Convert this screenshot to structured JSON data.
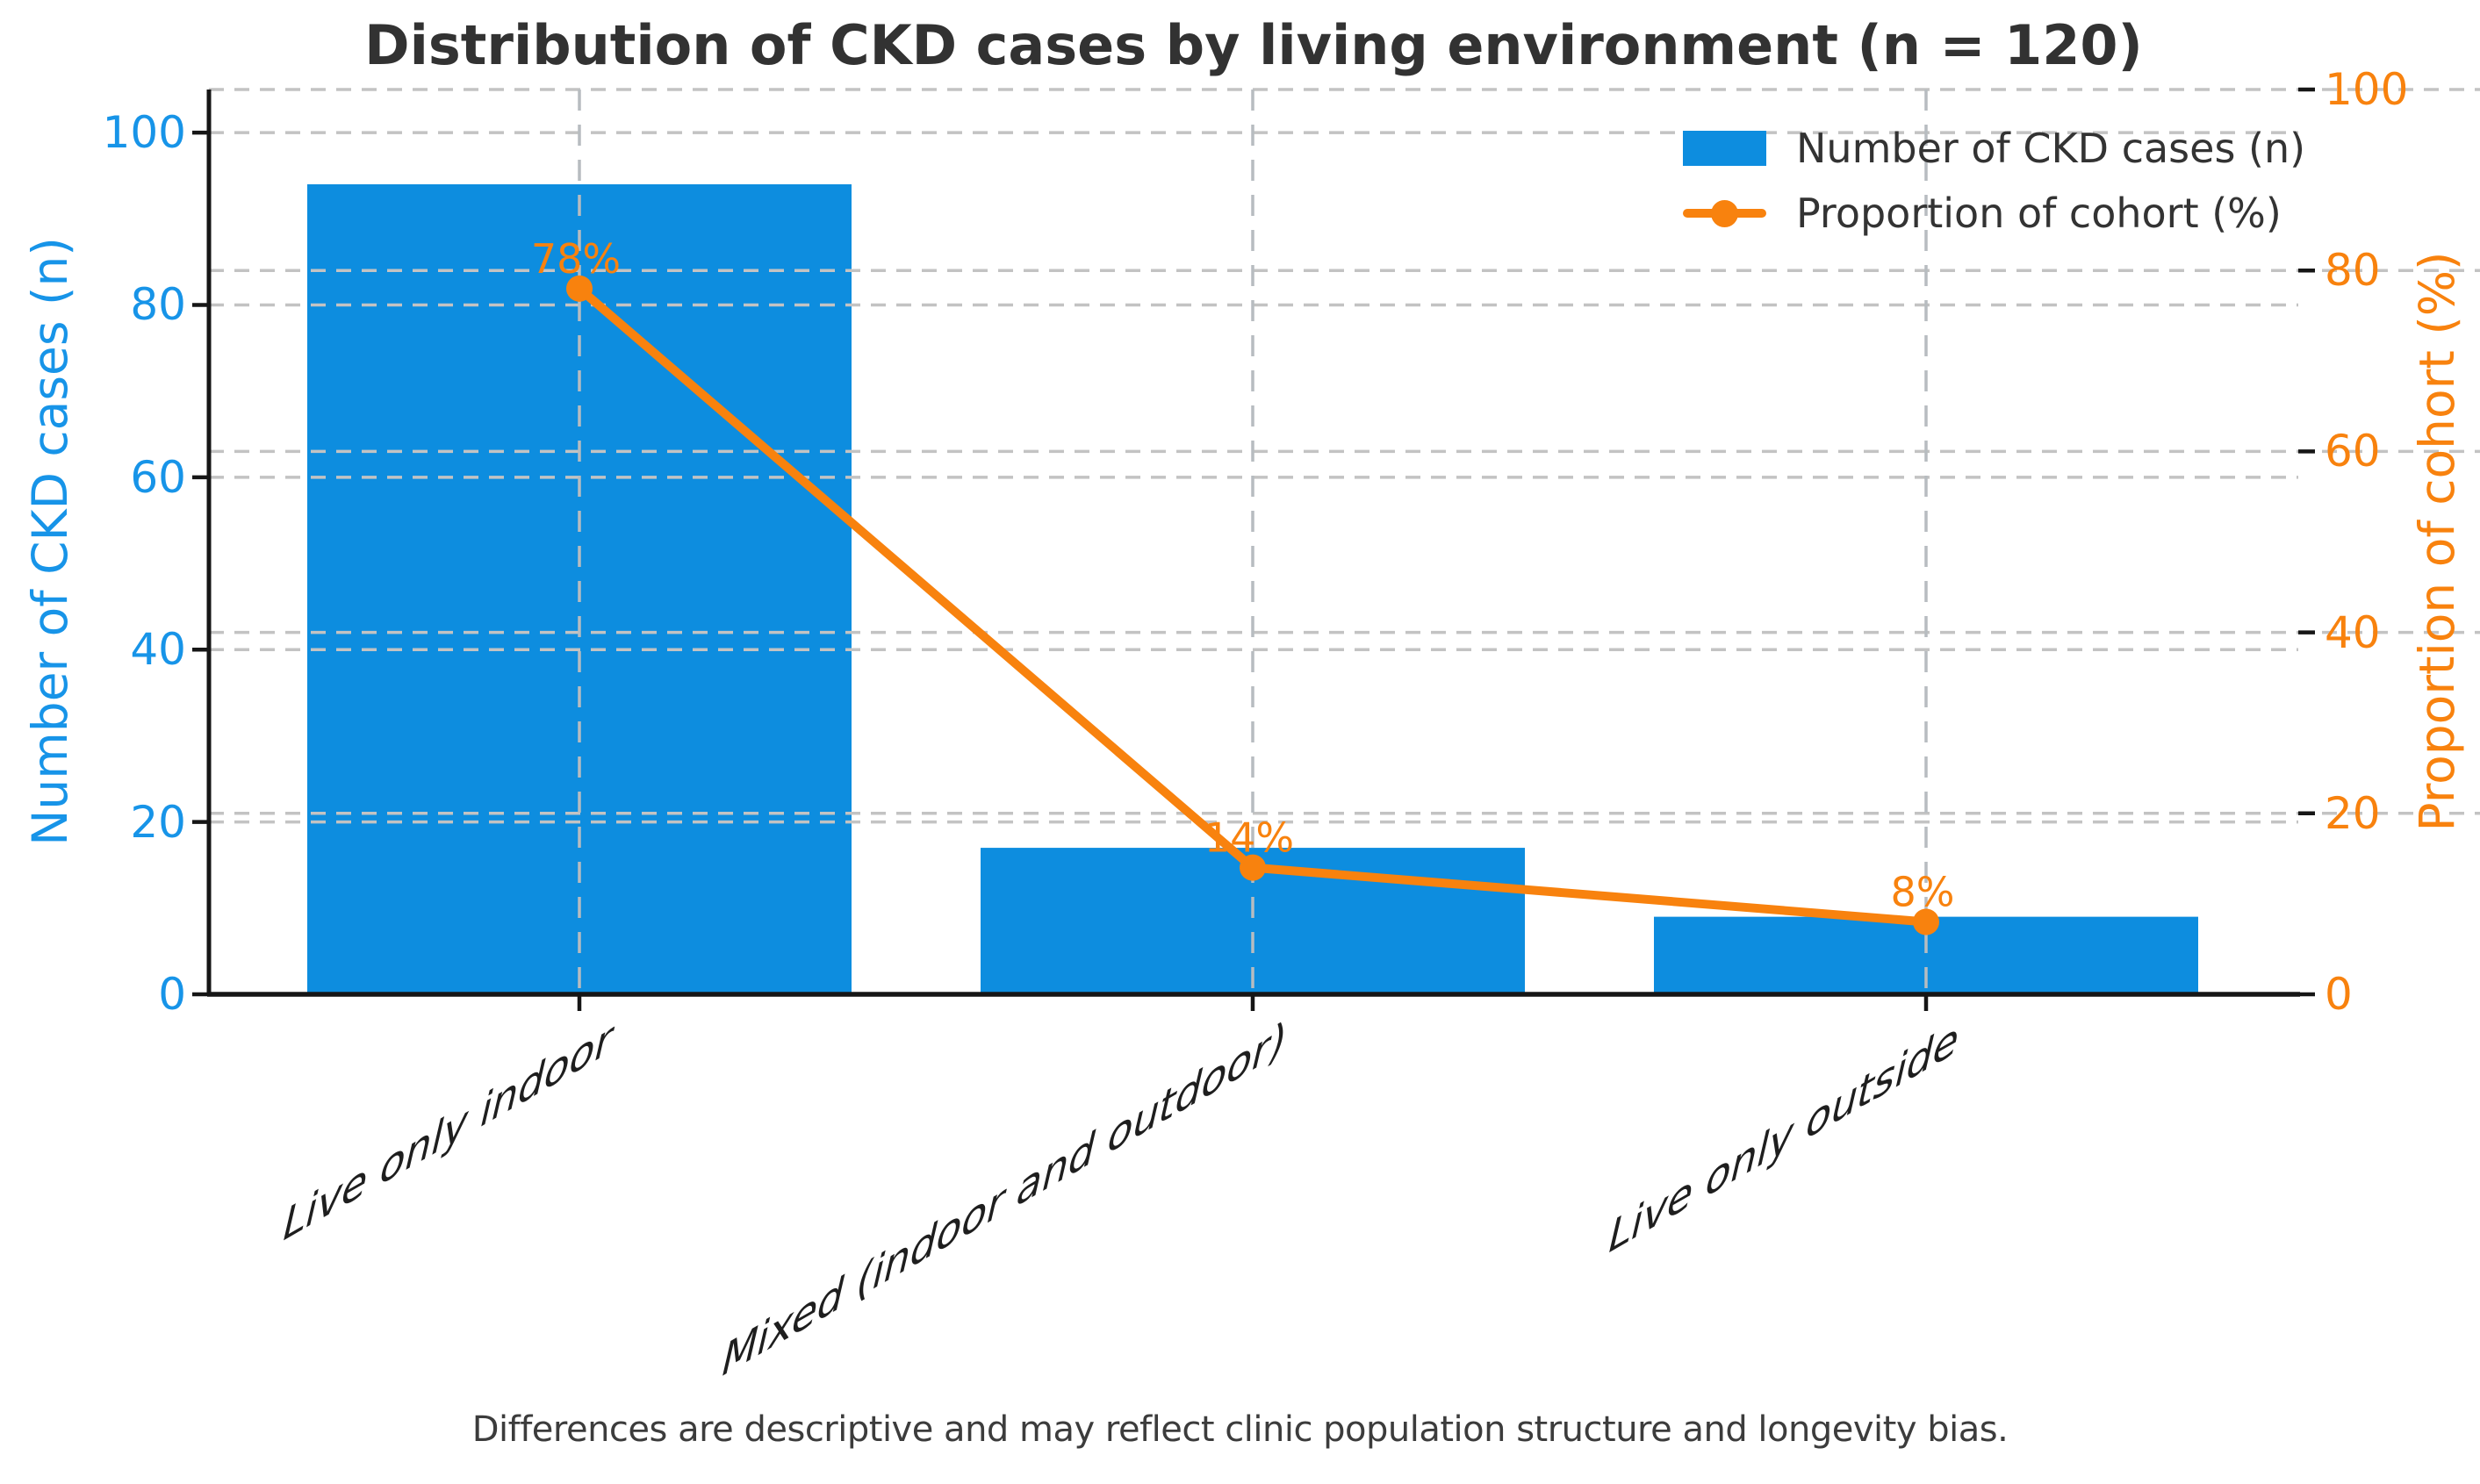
{
  "chart_data": {
    "type": "bar",
    "title": "Distribution of CKD cases by living environment (n = 120)",
    "footnote": "Differences are descriptive and may reflect clinic population structure and longevity bias.",
    "cohort_n": 120,
    "categories": [
      "Live only indoor",
      "Mixed (indoor and outdoor)",
      "Live only outside"
    ],
    "series": [
      {
        "name": "Number of CKD cases (n)",
        "type": "bar",
        "axis": "left",
        "values": [
          94,
          17,
          9
        ]
      },
      {
        "name": "Proportion of cohort (%)",
        "type": "line",
        "axis": "right",
        "values": [
          78,
          14,
          8
        ],
        "point_labels": [
          "78%",
          "14%",
          "8%"
        ]
      }
    ],
    "left_axis": {
      "label": "Number of CKD cases (n)",
      "ticks": [
        0,
        20,
        40,
        60,
        80,
        100
      ],
      "min": 0,
      "max": 105
    },
    "right_axis": {
      "label": "Proportion of cohort (%)",
      "ticks": [
        0,
        20,
        40,
        60,
        80,
        100
      ],
      "min": 0,
      "max": 100
    },
    "legend": {
      "position": "upper right",
      "entries": [
        "Number of CKD cases (n)",
        "Proportion of cohort (%)"
      ]
    },
    "grid": true
  },
  "colors": {
    "bar_blue": "#0d8ddf",
    "blue_text": "#1794e8",
    "line_orange": "#f8820e",
    "orange_text": "#f8820e",
    "grid_h": "#c3c3c3",
    "grid_v": "#b7bcc0",
    "spine": "#161616",
    "title_text": "#323232",
    "legend_text": "#333333",
    "category_text": "#1e1e1e",
    "footnote_text": "#3c3c3c"
  }
}
